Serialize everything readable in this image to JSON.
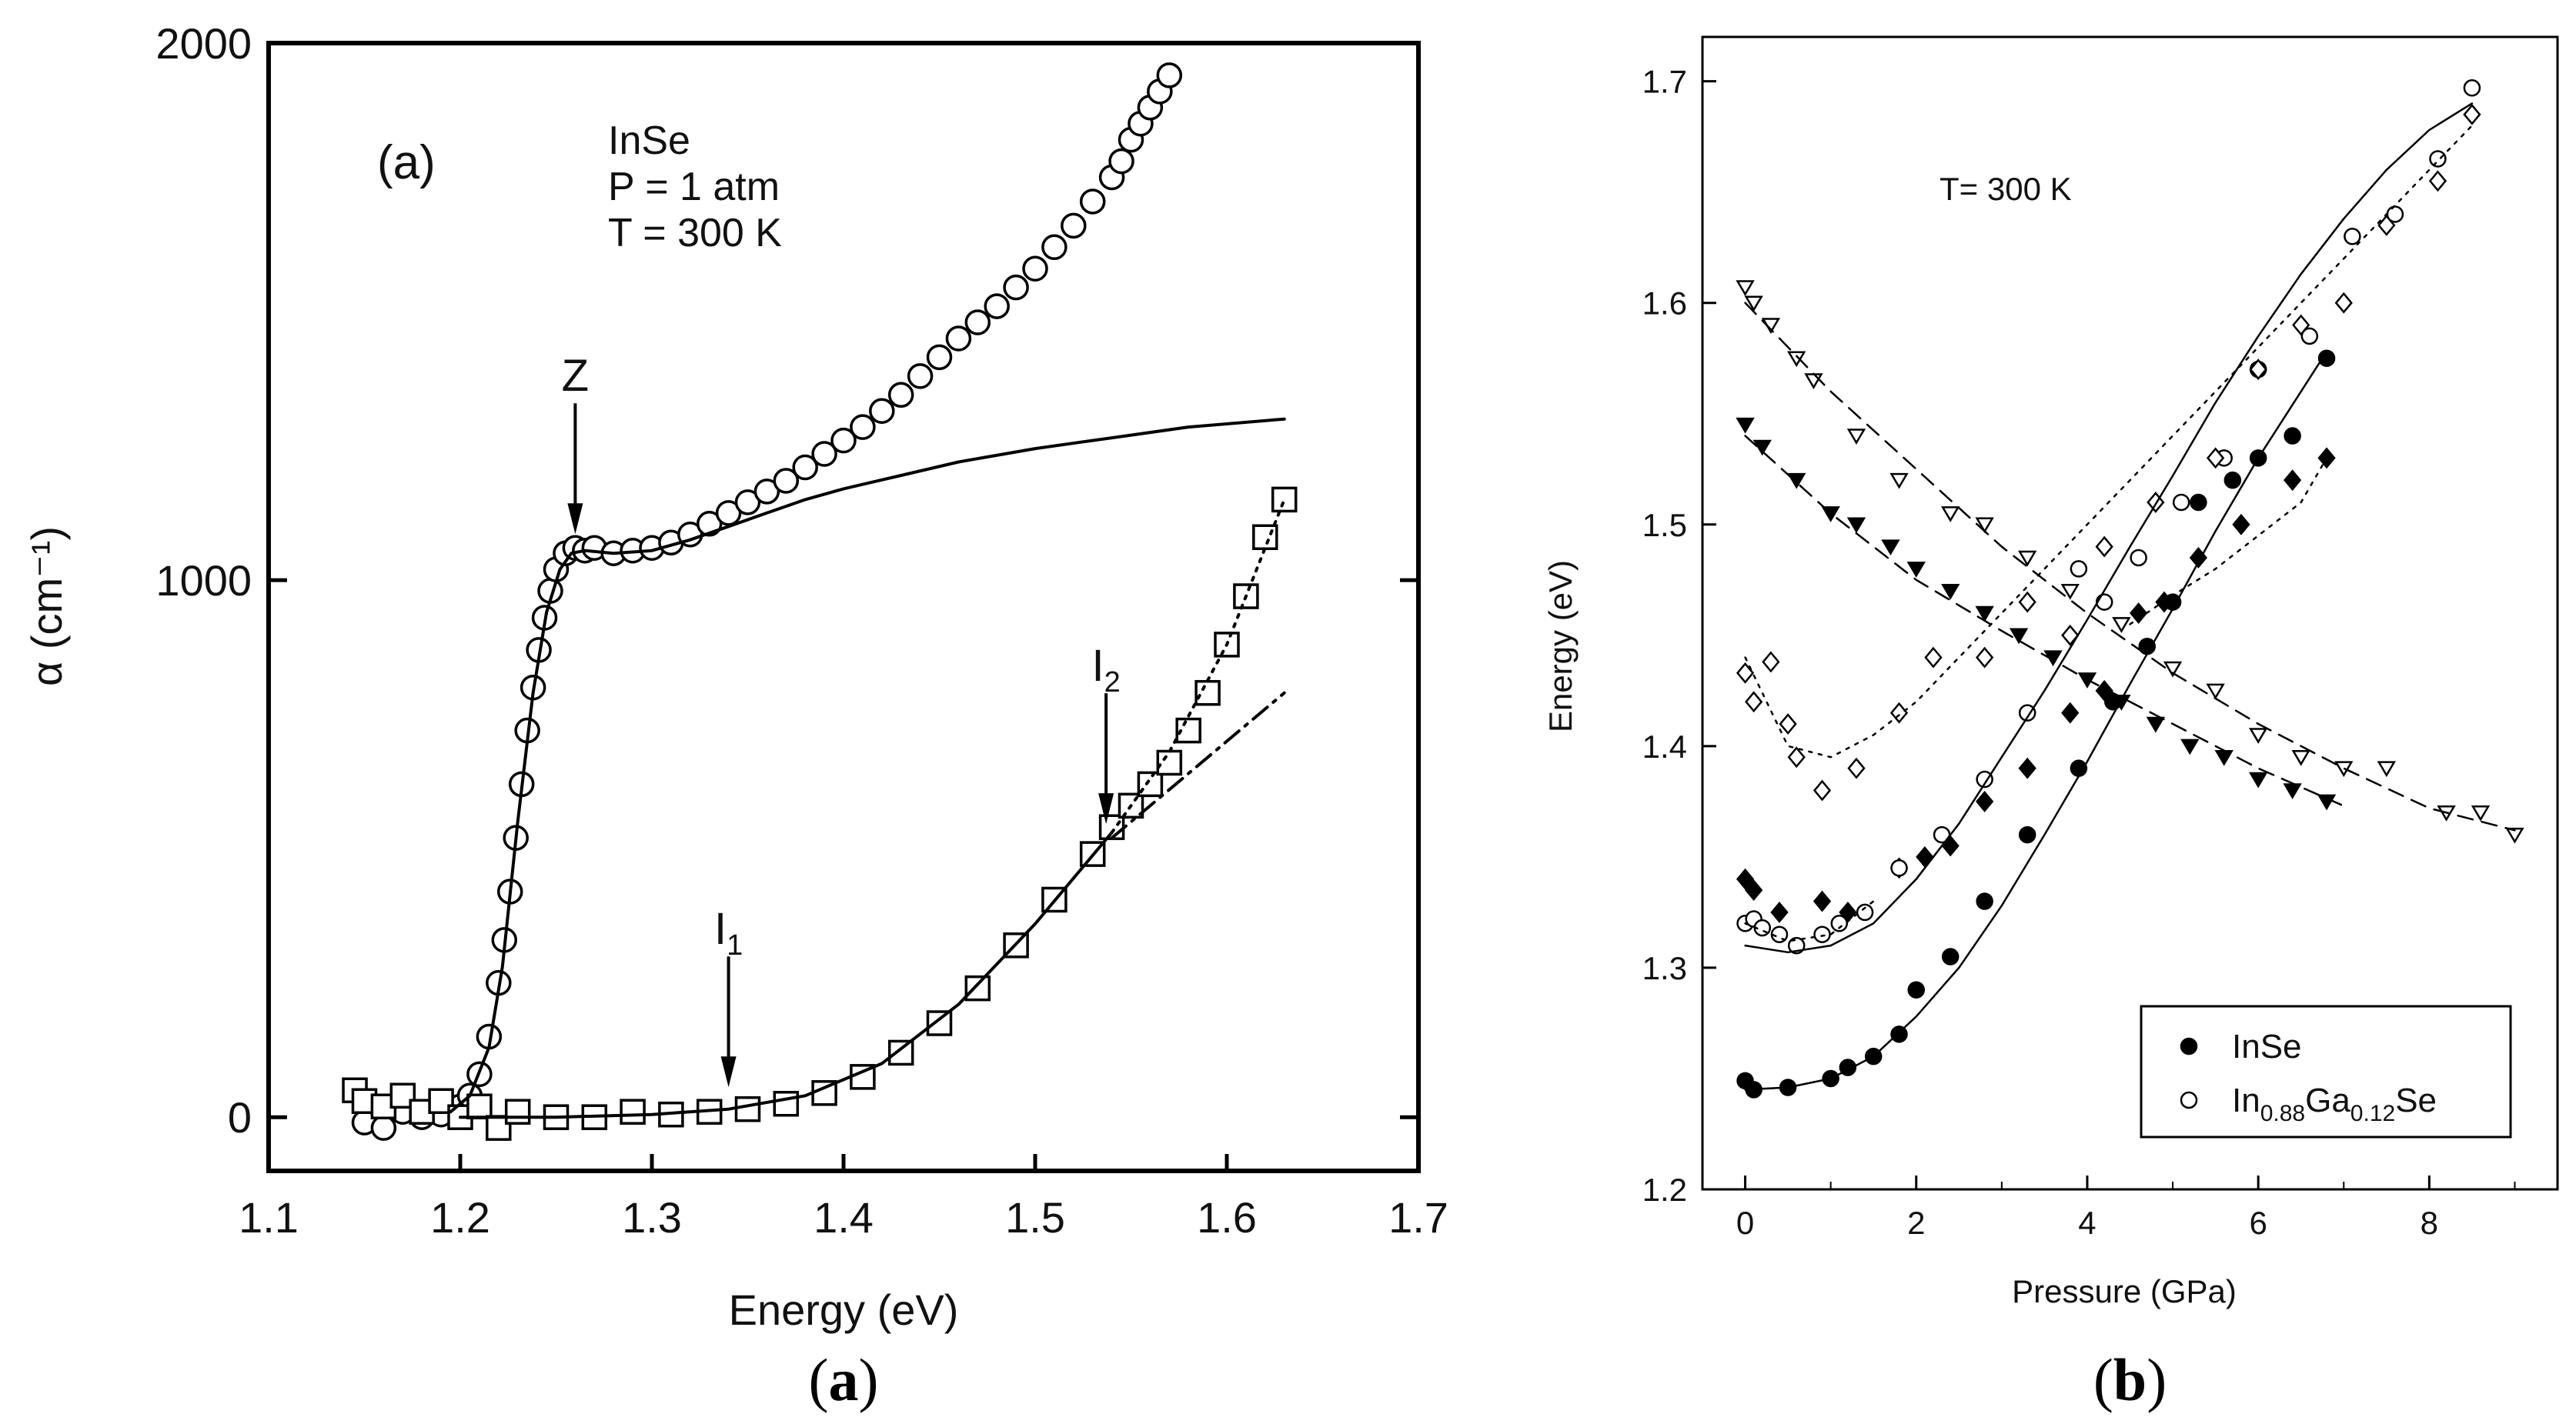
{
  "chart_data": [
    {
      "id": "a",
      "type": "scatter",
      "caption": "a",
      "xlabel": "Energy (eV)",
      "ylabel": "α (cm⁻¹)",
      "xlim": [
        1.1,
        1.7
      ],
      "ylim": [
        -100,
        2000
      ],
      "xticks": [
        "1.1",
        "1.2",
        "1.3",
        "1.4",
        "1.5",
        "1.6",
        "1.7"
      ],
      "yticks": [
        "0",
        "1000",
        "2000"
      ],
      "panel_label": "(a)",
      "annotation_lines": [
        "InSe",
        "P = 1 atm",
        "T = 300 K"
      ],
      "arrows": [
        {
          "label": "Z",
          "x": 1.26,
          "y": 1060
        },
        {
          "label": "I",
          "sub": "1",
          "x": 1.34,
          "y": 30
        },
        {
          "label": "I",
          "sub": "2",
          "x": 1.537,
          "y": 520
        }
      ],
      "series": [
        {
          "name": "circles",
          "marker": "open-circle",
          "x": [
            1.15,
            1.16,
            1.17,
            1.18,
            1.19,
            1.2,
            1.205,
            1.21,
            1.215,
            1.22,
            1.223,
            1.226,
            1.229,
            1.232,
            1.235,
            1.238,
            1.241,
            1.244,
            1.247,
            1.25,
            1.255,
            1.26,
            1.265,
            1.27,
            1.28,
            1.29,
            1.3,
            1.31,
            1.32,
            1.33,
            1.34,
            1.35,
            1.36,
            1.37,
            1.38,
            1.39,
            1.4,
            1.41,
            1.42,
            1.43,
            1.44,
            1.45,
            1.46,
            1.47,
            1.48,
            1.49,
            1.5,
            1.51,
            1.52,
            1.53,
            1.54,
            1.545,
            1.55,
            1.555,
            1.56,
            1.565,
            1.57
          ],
          "y": [
            -10,
            -20,
            10,
            0,
            5,
            20,
            40,
            80,
            150,
            250,
            330,
            420,
            520,
            620,
            720,
            800,
            870,
            930,
            980,
            1020,
            1050,
            1060,
            1055,
            1060,
            1050,
            1055,
            1060,
            1070,
            1085,
            1105,
            1125,
            1145,
            1165,
            1185,
            1210,
            1235,
            1260,
            1285,
            1315,
            1345,
            1380,
            1415,
            1450,
            1480,
            1510,
            1545,
            1580,
            1620,
            1660,
            1705,
            1750,
            1780,
            1820,
            1850,
            1880,
            1910,
            1940
          ]
        },
        {
          "name": "squares",
          "marker": "open-square",
          "x": [
            1.145,
            1.15,
            1.16,
            1.17,
            1.18,
            1.19,
            1.2,
            1.21,
            1.22,
            1.23,
            1.25,
            1.27,
            1.29,
            1.31,
            1.33,
            1.35,
            1.37,
            1.39,
            1.41,
            1.43,
            1.45,
            1.47,
            1.49,
            1.51,
            1.53,
            1.54,
            1.55,
            1.56,
            1.57,
            1.58,
            1.59,
            1.6,
            1.61,
            1.62,
            1.63
          ],
          "y": [
            50,
            30,
            20,
            40,
            10,
            30,
            0,
            20,
            -20,
            10,
            0,
            0,
            10,
            5,
            10,
            15,
            25,
            45,
            75,
            120,
            175,
            240,
            320,
            405,
            490,
            540,
            580,
            620,
            660,
            720,
            790,
            880,
            970,
            1080,
            1150
          ]
        },
        {
          "name": "fit-circles",
          "marker": "solid-line",
          "x": [
            1.195,
            1.205,
            1.215,
            1.222,
            1.23,
            1.238,
            1.245,
            1.252,
            1.258,
            1.265,
            1.28,
            1.3,
            1.32,
            1.34,
            1.36,
            1.38,
            1.4,
            1.43,
            1.46,
            1.5,
            1.54,
            1.58,
            1.63
          ],
          "y": [
            10,
            40,
            130,
            280,
            550,
            790,
            940,
            1020,
            1050,
            1055,
            1050,
            1055,
            1075,
            1100,
            1125,
            1150,
            1170,
            1195,
            1220,
            1245,
            1265,
            1285,
            1300
          ]
        },
        {
          "name": "fit-squares",
          "marker": "solid-line",
          "x": [
            1.2,
            1.25,
            1.3,
            1.34,
            1.38,
            1.42,
            1.46,
            1.5,
            1.54
          ],
          "y": [
            0,
            0,
            5,
            15,
            40,
            100,
            210,
            360,
            530
          ]
        },
        {
          "name": "fit-squares-dotted",
          "marker": "dotted-line",
          "x": [
            1.54,
            1.57,
            1.6,
            1.63
          ],
          "y": [
            530,
            680,
            880,
            1150
          ]
        },
        {
          "name": "fit-squares-dashdot",
          "marker": "dashdot-line",
          "x": [
            1.54,
            1.57,
            1.6,
            1.63
          ],
          "y": [
            520,
            610,
            700,
            790
          ]
        }
      ]
    },
    {
      "id": "b",
      "type": "scatter",
      "caption": "b",
      "xlabel": "Pressure (GPa)",
      "ylabel": "Energy (eV)",
      "xlim": [
        -0.5,
        9.5
      ],
      "ylim": [
        1.2,
        1.72
      ],
      "xticks": [
        "0",
        "2",
        "4",
        "6",
        "8"
      ],
      "yticks": [
        "1.2",
        "1.3",
        "1.4",
        "1.5",
        "1.6",
        "1.7"
      ],
      "annotation": "T= 300 K",
      "legend": {
        "position": "bottom-right",
        "entries": [
          {
            "marker": "filled-circle",
            "text": "InSe"
          },
          {
            "marker": "open-circle",
            "parts": [
              {
                "t": "In",
                "sub": false
              },
              {
                "t": "0.88",
                "sub": true
              },
              {
                "t": "Ga",
                "sub": false
              },
              {
                "t": "0.12",
                "sub": true
              },
              {
                "t": "Se",
                "sub": false
              }
            ]
          }
        ]
      },
      "series": [
        {
          "name": "InSe-filled-circle",
          "marker": "filled-circle",
          "x": [
            0.0,
            0.1,
            0.5,
            1.0,
            1.2,
            1.5,
            1.8,
            2.0,
            2.4,
            2.8,
            3.3,
            3.9,
            4.3,
            4.7,
            5.0,
            5.3,
            5.7,
            6.0,
            6.4,
            6.8
          ],
          "y": [
            1.249,
            1.245,
            1.246,
            1.25,
            1.255,
            1.26,
            1.27,
            1.29,
            1.305,
            1.33,
            1.36,
            1.39,
            1.42,
            1.445,
            1.465,
            1.51,
            1.52,
            1.53,
            1.54,
            1.575
          ]
        },
        {
          "name": "InSe-filled-diamond",
          "marker": "filled-diamond",
          "x": [
            0.0,
            0.1,
            0.4,
            0.9,
            1.2,
            1.8,
            2.1,
            2.4,
            2.8,
            3.3,
            3.8,
            4.2,
            4.6,
            4.9,
            5.3,
            5.8,
            6.4,
            6.8
          ],
          "y": [
            1.34,
            1.335,
            1.325,
            1.33,
            1.325,
            1.345,
            1.35,
            1.355,
            1.375,
            1.39,
            1.415,
            1.425,
            1.46,
            1.465,
            1.485,
            1.5,
            1.52,
            1.53
          ]
        },
        {
          "name": "InSe-filled-triangle",
          "marker": "filled-triangle",
          "x": [
            0.0,
            0.2,
            0.6,
            1.0,
            1.3,
            1.7,
            2.0,
            2.4,
            2.8,
            3.2,
            3.6,
            4.0,
            4.4,
            4.8,
            5.2,
            5.6,
            6.0,
            6.4,
            6.8
          ],
          "y": [
            1.545,
            1.535,
            1.52,
            1.505,
            1.5,
            1.49,
            1.48,
            1.47,
            1.46,
            1.45,
            1.44,
            1.43,
            1.42,
            1.41,
            1.4,
            1.395,
            1.385,
            1.38,
            1.375
          ]
        },
        {
          "name": "alloy-open-circle",
          "marker": "open-circle",
          "x": [
            0.0,
            0.1,
            0.2,
            0.4,
            0.6,
            0.9,
            1.1,
            1.4,
            1.8,
            2.3,
            2.8,
            3.3,
            3.9,
            4.2,
            4.6,
            5.1,
            5.6,
            6.0,
            6.6,
            7.1,
            7.6,
            8.1,
            8.5
          ],
          "y": [
            1.32,
            1.322,
            1.318,
            1.315,
            1.31,
            1.315,
            1.32,
            1.325,
            1.345,
            1.36,
            1.385,
            1.415,
            1.48,
            1.465,
            1.485,
            1.51,
            1.53,
            1.57,
            1.585,
            1.63,
            1.64,
            1.665,
            1.697
          ]
        },
        {
          "name": "alloy-open-diamond",
          "marker": "open-diamond",
          "x": [
            0.0,
            0.1,
            0.3,
            0.5,
            0.6,
            0.9,
            1.3,
            1.8,
            2.2,
            2.8,
            3.3,
            3.8,
            4.2,
            4.8,
            5.5,
            6.0,
            6.5,
            7.0,
            7.5,
            8.1,
            8.5
          ],
          "y": [
            1.433,
            1.42,
            1.438,
            1.41,
            1.395,
            1.38,
            1.39,
            1.415,
            1.44,
            1.44,
            1.465,
            1.45,
            1.49,
            1.51,
            1.53,
            1.57,
            1.59,
            1.6,
            1.635,
            1.655,
            1.685
          ]
        },
        {
          "name": "alloy-open-triangle",
          "marker": "open-triangle",
          "x": [
            0.0,
            0.1,
            0.3,
            0.6,
            0.8,
            1.3,
            1.8,
            2.4,
            2.8,
            3.3,
            3.8,
            4.4,
            5.0,
            5.5,
            6.0,
            6.5,
            7.0,
            7.5,
            8.2,
            8.6,
            9.0
          ],
          "y": [
            1.607,
            1.6,
            1.59,
            1.575,
            1.565,
            1.54,
            1.52,
            1.505,
            1.5,
            1.485,
            1.47,
            1.455,
            1.435,
            1.425,
            1.405,
            1.395,
            1.39,
            1.39,
            1.37,
            1.37,
            1.36
          ]
        },
        {
          "name": "fit-InSe-circle",
          "marker": "solid-line",
          "x": [
            0.0,
            0.5,
            1.0,
            1.5,
            2.0,
            2.5,
            3.0,
            3.5,
            4.0,
            4.5,
            5.0,
            5.5,
            6.0,
            6.5,
            6.8
          ],
          "y": [
            1.245,
            1.246,
            1.25,
            1.26,
            1.278,
            1.3,
            1.328,
            1.36,
            1.393,
            1.428,
            1.462,
            1.497,
            1.53,
            1.56,
            1.578
          ]
        },
        {
          "name": "fit-InSe-diamond",
          "marker": "solid-line",
          "x": [
            0.0,
            0.5,
            1.0,
            1.5,
            2.0,
            2.5,
            3.0,
            3.5,
            4.0,
            4.5,
            5.0,
            5.5,
            6.0,
            6.5,
            7.0,
            7.5,
            8.0,
            8.5
          ],
          "y": [
            1.31,
            1.307,
            1.31,
            1.32,
            1.34,
            1.365,
            1.395,
            1.425,
            1.457,
            1.49,
            1.522,
            1.555,
            1.585,
            1.613,
            1.638,
            1.66,
            1.678,
            1.69
          ]
        },
        {
          "name": "fit-InSe-triangle",
          "marker": "dashed-line",
          "x": [
            0.0,
            1.0,
            2.0,
            3.0,
            4.0,
            5.0,
            6.0,
            7.0
          ],
          "y": [
            1.54,
            1.505,
            1.475,
            1.452,
            1.43,
            1.41,
            1.39,
            1.373
          ]
        },
        {
          "name": "fit-alloy-triangle",
          "marker": "dashed-line",
          "x": [
            0.0,
            1.0,
            2.0,
            3.0,
            4.0,
            5.0,
            6.0,
            7.0,
            8.0,
            9.0
          ],
          "y": [
            1.6,
            1.56,
            1.525,
            1.49,
            1.46,
            1.433,
            1.41,
            1.39,
            1.372,
            1.362
          ]
        },
        {
          "name": "fit-alloy-diamond-circle",
          "marker": "dotted-line",
          "x": [
            0.0,
            0.5,
            1.0,
            1.5,
            2.0,
            2.5,
            3.0,
            3.5,
            4.0,
            4.5,
            5.0,
            5.5,
            6.0,
            6.5,
            7.0,
            7.5,
            8.0,
            8.5
          ],
          "y": [
            1.44,
            1.4,
            1.395,
            1.405,
            1.42,
            1.44,
            1.46,
            1.48,
            1.5,
            1.52,
            1.54,
            1.56,
            1.58,
            1.6,
            1.62,
            1.64,
            1.66,
            1.68
          ]
        },
        {
          "name": "fit-alloy-circle-low",
          "marker": "dotted-line",
          "x": [
            0.0,
            0.5,
            1.0,
            1.5
          ],
          "y": [
            1.32,
            1.312,
            1.315,
            1.33
          ]
        },
        {
          "name": "fit-InSe-diamond-dotted",
          "marker": "dotted-line",
          "x": [
            4.5,
            5.0,
            5.5,
            6.0,
            6.5,
            6.8
          ],
          "y": [
            1.455,
            1.468,
            1.48,
            1.495,
            1.51,
            1.53
          ]
        }
      ]
    }
  ]
}
